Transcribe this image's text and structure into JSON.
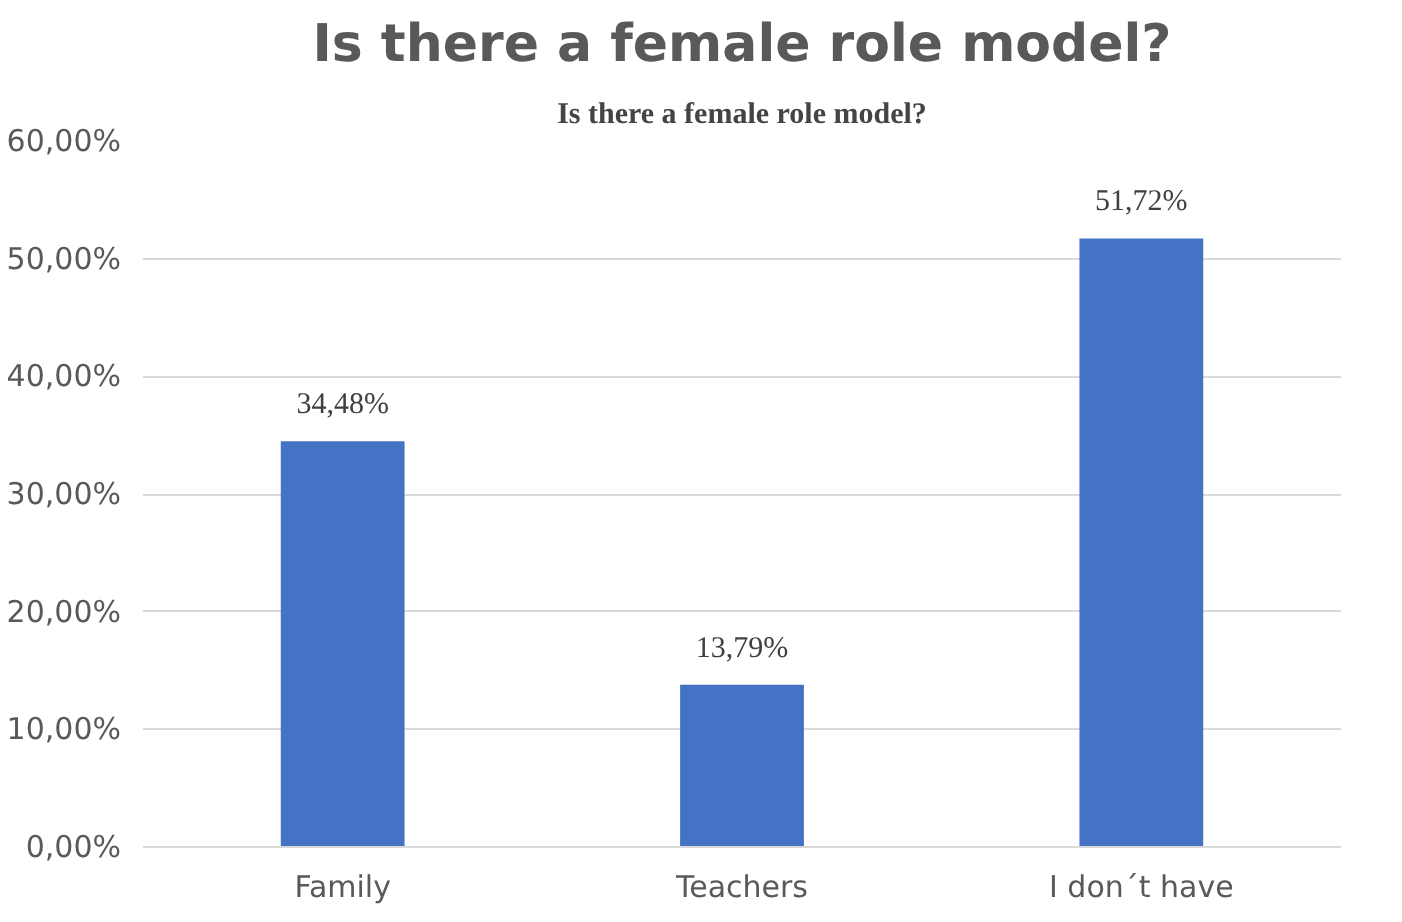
{
  "chart_data": {
    "type": "bar",
    "title": "Is there a female role model?",
    "annotations": [
      "Is there a female role model?"
    ],
    "categories": [
      "Family",
      "Teachers",
      "I don´t have"
    ],
    "values": [
      34.48,
      13.79,
      51.72
    ],
    "color": "#4472c4",
    "value_labels": [
      "34,48%",
      "13,79%",
      "51,72%"
    ],
    "ylim": [
      0,
      60
    ],
    "yticks": [
      {
        "value": 0,
        "label": "0,00%"
      },
      {
        "value": 10,
        "label": "10,00%"
      },
      {
        "value": 20,
        "label": "20,00%"
      },
      {
        "value": 30,
        "label": "30,00%"
      },
      {
        "value": 40,
        "label": "40,00%"
      },
      {
        "value": 50,
        "label": "50,00%"
      },
      {
        "value": 60,
        "label": "60,00%"
      }
    ],
    "grid": "y"
  }
}
